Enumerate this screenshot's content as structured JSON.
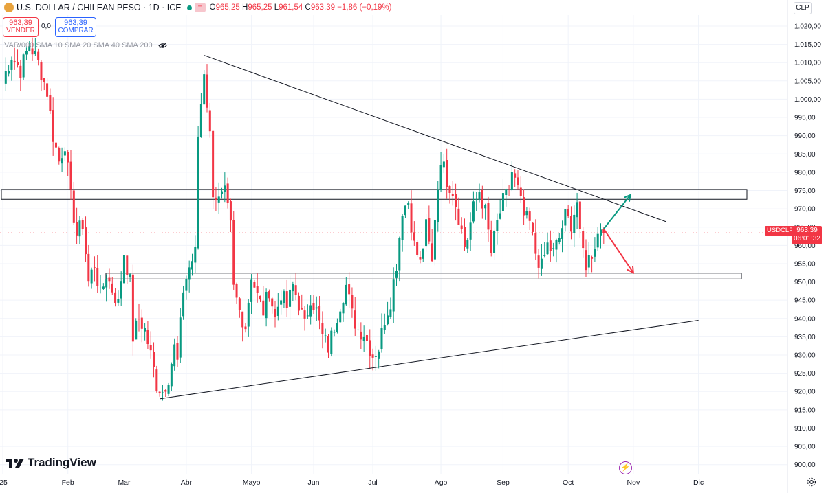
{
  "header": {
    "title": "U.S. DOLLAR / CHILEAN PESO · 1D · ICE",
    "eq_label": "=",
    "open_label": "O",
    "open": "965,25",
    "high_label": "H",
    "high": "965,25",
    "low_label": "L",
    "low": "961,54",
    "close_label": "C",
    "close": "963,39",
    "change": "−1,86 (−0,19%)"
  },
  "trade": {
    "sell_price": "963,39",
    "sell_label": "VENDER",
    "spread": "0,0",
    "buy_price": "963,39",
    "buy_label": "COMPRAR"
  },
  "indicators": {
    "text": "VAR/000 SMA 10 SMA 20 SMA 40 SMA 200"
  },
  "currency_button": "CLP",
  "last_price": {
    "symbol": "USDCLP",
    "value": "963,39",
    "countdown": "06:01:32"
  },
  "branding": {
    "logo_text": "TradingView",
    "icons": [
      "tradingview-logo-icon",
      "lightning-icon",
      "settings-gear-icon",
      "eye-icon"
    ]
  },
  "colors": {
    "up": "#089981",
    "down": "#f23645",
    "grid": "#f0f3fa",
    "trendline": "#131722",
    "arrow_up": "#089981",
    "arrow_down": "#f23645"
  },
  "chart_data": {
    "type": "candlestick",
    "title": "U.S. DOLLAR / CHILEAN PESO · 1D · ICE",
    "ylim": [
      897.5,
      1023
    ],
    "y_ticks": [
      900,
      905,
      910,
      915,
      920,
      925,
      930,
      935,
      940,
      945,
      950,
      955,
      960,
      965,
      970,
      975,
      980,
      985,
      990,
      995,
      1000,
      1005,
      1010,
      1015,
      1020
    ],
    "y_tick_labels": [
      "900,00",
      "905,00",
      "910,00",
      "915,00",
      "920,00",
      "925,00",
      "930,00",
      "935,00",
      "940,00",
      "945,00",
      "950,00",
      "955,00",
      "960,00",
      "965,00",
      "970,00",
      "975,00",
      "980,00",
      "985,00",
      "990,00",
      "995,00",
      "1.000,00",
      "1.005,00",
      "1.010,00",
      "1.015,00",
      "1.020,00"
    ],
    "x_labels": [
      "'25",
      "Feb",
      "Mar",
      "Abr",
      "Mayo",
      "Jun",
      "Jul",
      "Ago",
      "Sep",
      "Oct",
      "Nov",
      "Dic"
    ],
    "x_label_positions": [
      0,
      22,
      41,
      62,
      84,
      105,
      125,
      148,
      169,
      191,
      213,
      235
    ],
    "x_range": [
      0,
      266
    ],
    "last_price": 963.39,
    "candle_anchors": [
      [
        0,
        1005
      ],
      [
        3,
        1012
      ],
      [
        6,
        1008
      ],
      [
        9,
        1015
      ],
      [
        12,
        1010
      ],
      [
        15,
        1002
      ],
      [
        17,
        990
      ],
      [
        19,
        983
      ],
      [
        21,
        988
      ],
      [
        23,
        973
      ],
      [
        25,
        963
      ],
      [
        27,
        966
      ],
      [
        29,
        950
      ],
      [
        31,
        955
      ],
      [
        33,
        946
      ],
      [
        35,
        952
      ],
      [
        37,
        948
      ],
      [
        39,
        944
      ],
      [
        41,
        958
      ],
      [
        43,
        950
      ],
      [
        44,
        935
      ],
      [
        46,
        940
      ],
      [
        48,
        937
      ],
      [
        50,
        930
      ],
      [
        52,
        922
      ],
      [
        54,
        920
      ],
      [
        56,
        924
      ],
      [
        58,
        932
      ],
      [
        59,
        928
      ],
      [
        61,
        948
      ],
      [
        63,
        954
      ],
      [
        65,
        958
      ],
      [
        66,
        990
      ],
      [
        68,
        1008
      ],
      [
        70,
        990
      ],
      [
        71,
        975
      ],
      [
        73,
        972
      ],
      [
        75,
        974
      ],
      [
        77,
        965
      ],
      [
        78,
        948
      ],
      [
        80,
        942
      ],
      [
        82,
        938
      ],
      [
        84,
        952
      ],
      [
        86,
        946
      ],
      [
        88,
        942
      ],
      [
        90,
        948
      ],
      [
        92,
        940
      ],
      [
        94,
        947
      ],
      [
        96,
        943
      ],
      [
        98,
        949
      ],
      [
        100,
        944
      ],
      [
        102,
        938
      ],
      [
        104,
        946
      ],
      [
        106,
        942
      ],
      [
        108,
        935
      ],
      [
        110,
        932
      ],
      [
        112,
        938
      ],
      [
        114,
        944
      ],
      [
        116,
        949
      ],
      [
        118,
        941
      ],
      [
        120,
        937
      ],
      [
        122,
        936
      ],
      [
        125,
        930
      ],
      [
        127,
        932
      ],
      [
        129,
        940
      ],
      [
        131,
        945
      ],
      [
        133,
        955
      ],
      [
        135,
        970
      ],
      [
        137,
        972
      ],
      [
        139,
        960
      ],
      [
        141,
        955
      ],
      [
        143,
        965
      ],
      [
        145,
        955
      ],
      [
        146,
        968
      ],
      [
        148,
        984
      ],
      [
        150,
        978
      ],
      [
        152,
        975
      ],
      [
        154,
        968
      ],
      [
        156,
        960
      ],
      [
        157,
        962
      ],
      [
        159,
        970
      ],
      [
        161,
        975
      ],
      [
        163,
        969
      ],
      [
        165,
        958
      ],
      [
        167,
        966
      ],
      [
        169,
        972
      ],
      [
        171,
        975
      ],
      [
        172,
        980
      ],
      [
        174,
        975
      ],
      [
        176,
        968
      ],
      [
        178,
        966
      ],
      [
        180,
        958
      ],
      [
        182,
        954
      ],
      [
        184,
        960
      ],
      [
        186,
        958
      ],
      [
        188,
        962
      ],
      [
        190,
        968
      ],
      [
        192,
        966
      ],
      [
        194,
        972
      ],
      [
        195,
        962
      ],
      [
        197,
        955
      ],
      [
        199,
        958
      ],
      [
        201,
        963
      ],
      [
        202,
        965.25
      ],
      [
        203,
        963.39
      ]
    ],
    "annotations": {
      "resistance_zone": [
        972.6,
        975.3
      ],
      "support_zone": [
        950.8,
        952.4
      ],
      "descending_trendline": [
        [
          68,
          1012
        ],
        [
          224,
          966.5
        ]
      ],
      "ascending_trendline": [
        [
          53,
          918
        ],
        [
          235,
          939.5
        ]
      ],
      "arrow_up": [
        [
          203,
          964.5
        ],
        [
          212,
          973.8
        ]
      ],
      "arrow_down": [
        [
          203,
          964.5
        ],
        [
          213,
          952.5
        ]
      ]
    }
  }
}
